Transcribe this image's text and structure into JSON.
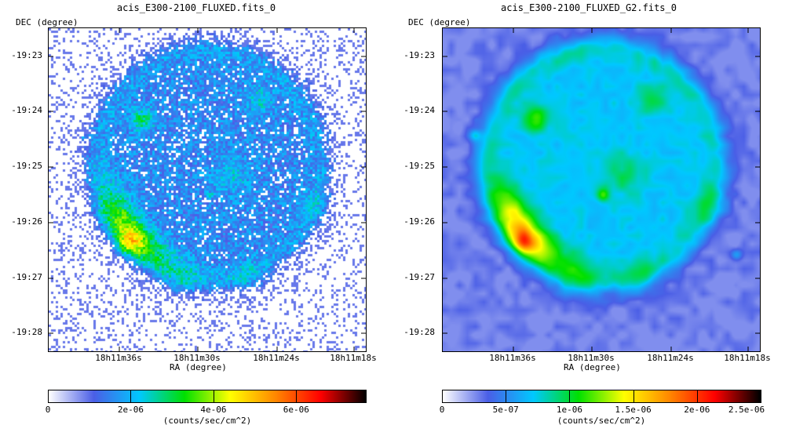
{
  "chart_data": [
    {
      "type": "heatmap",
      "title": "acis_E300-2100_FLUXED.fits_0",
      "ylabel": "DEC (degree)",
      "xlabel": "RA (degree)",
      "yticks": [
        "-19:23",
        "-19:24",
        "-19:25",
        "-19:26",
        "-19:27",
        "-19:28"
      ],
      "xticks": [
        "18h11m36s",
        "18h11m30s",
        "18h11m24s",
        "18h11m18s"
      ],
      "style": "binned-noisy",
      "colorbar": {
        "label": "(counts/sec/cm^2)",
        "ticks": [
          "0",
          "2e-06",
          "4e-06",
          "6e-06"
        ],
        "tick_values": [
          0,
          2e-06,
          4e-06,
          6e-06
        ],
        "range": [
          0,
          7.7e-06
        ],
        "colormap": [
          "#ffffff",
          "#4a5ee6",
          "#00c8ff",
          "#00e000",
          "#ffff00",
          "#ff8800",
          "#ff0000",
          "#000000"
        ]
      },
      "features": {
        "remnant_shape": "circular shell",
        "bright_regions": [
          "south-east limb arc",
          "north-east knot",
          "compact source near center"
        ]
      }
    },
    {
      "type": "heatmap",
      "title": "acis_E300-2100_FLUXED_G2.fits_0",
      "ylabel": "DEC (degree)",
      "xlabel": "RA (degree)",
      "yticks": [
        "-19:23",
        "-19:24",
        "-19:25",
        "-19:26",
        "-19:27",
        "-19:28"
      ],
      "xticks": [
        "18h11m36s",
        "18h11m30s",
        "18h11m24s",
        "18h11m18s"
      ],
      "style": "smoothed",
      "colorbar": {
        "label": "(counts/sec/cm^2)",
        "ticks": [
          "0",
          "5e-07",
          "1e-06",
          "1.5e-06",
          "2e-06",
          "2.5e-06"
        ],
        "tick_values": [
          0,
          5e-07,
          1e-06,
          1.5e-06,
          2e-06,
          2.5e-06
        ],
        "range": [
          0,
          2.5e-06
        ],
        "colormap": [
          "#ffffff",
          "#4a5ee6",
          "#00c8ff",
          "#00e000",
          "#ffff00",
          "#ff8800",
          "#ff0000",
          "#000000"
        ]
      },
      "features": {
        "remnant_shape": "circular shell",
        "bright_regions": [
          "south-east limb arc",
          "north-east knot",
          "compact source near center",
          "point source east",
          "point source west"
        ]
      }
    }
  ]
}
